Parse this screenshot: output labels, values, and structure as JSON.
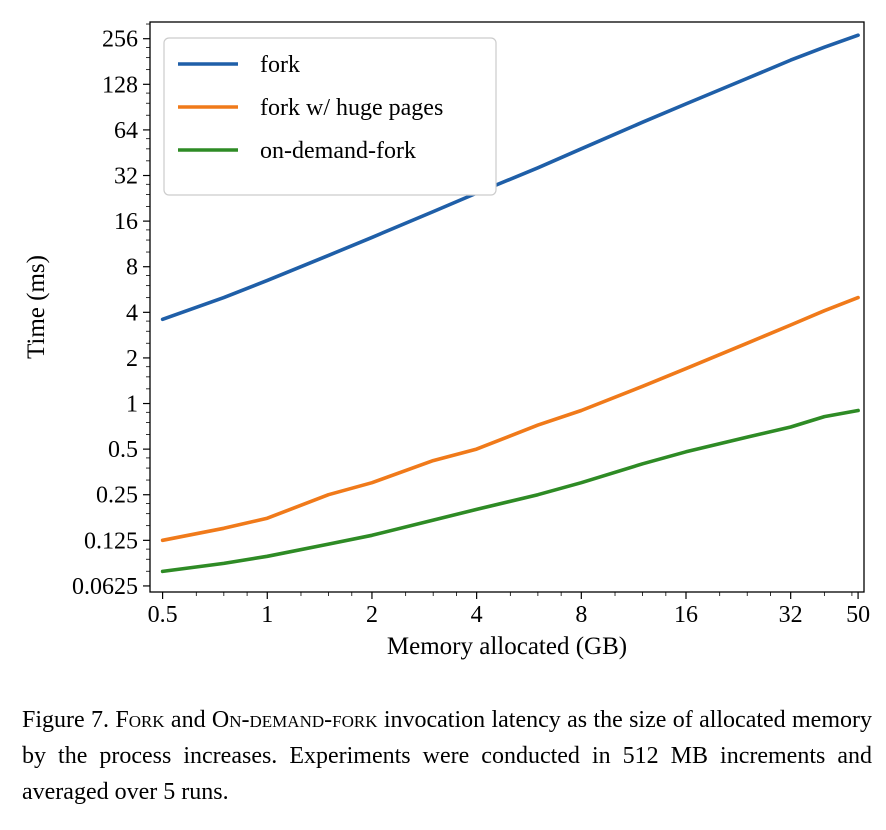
{
  "chart_data": {
    "type": "line",
    "xlabel": "Memory allocated (GB)",
    "ylabel": "Time (ms)",
    "x_scale": "log2",
    "y_scale": "log2",
    "xlim": [
      0.46,
      52
    ],
    "ylim": [
      0.057,
      330
    ],
    "x_ticks": [
      0.5,
      1,
      2,
      4,
      8,
      16,
      32,
      50
    ],
    "x_tick_labels": [
      "0.5",
      "1",
      "2",
      "4",
      "8",
      "16",
      "32",
      "50"
    ],
    "y_ticks": [
      0.0625,
      0.125,
      0.25,
      0.5,
      1,
      2,
      4,
      8,
      16,
      32,
      64,
      128,
      256
    ],
    "y_tick_labels": [
      "0.0625",
      "0.125",
      "0.25",
      "0.5",
      "1",
      "2",
      "4",
      "8",
      "16",
      "32",
      "64",
      "128",
      "256"
    ],
    "grid": false,
    "legend_position": "top-left",
    "x": [
      0.5,
      0.75,
      1,
      1.5,
      2,
      3,
      4,
      6,
      8,
      12,
      16,
      24,
      32,
      40,
      50
    ],
    "series": [
      {
        "name": "fork",
        "color": "#1f5fa8",
        "values": [
          3.6,
          5.0,
          6.5,
          9.5,
          12.5,
          18.5,
          24.5,
          36,
          48,
          72,
          95,
          140,
          185,
          225,
          270
        ]
      },
      {
        "name": "fork w/ huge pages",
        "color": "#f07a1a",
        "values": [
          0.125,
          0.15,
          0.175,
          0.25,
          0.3,
          0.42,
          0.5,
          0.72,
          0.9,
          1.3,
          1.7,
          2.5,
          3.3,
          4.1,
          5.0
        ]
      },
      {
        "name": "on-demand-fork",
        "color": "#2e8b25",
        "values": [
          0.078,
          0.088,
          0.098,
          0.118,
          0.135,
          0.17,
          0.2,
          0.25,
          0.3,
          0.4,
          0.48,
          0.6,
          0.7,
          0.82,
          0.9
        ]
      }
    ]
  },
  "caption": {
    "prefix": "Figure 7. ",
    "term1": "Fork",
    "mid1": " and ",
    "term2": "On-demand-fork",
    "rest": " invocation latency as the size of allocated memory by the process increases. Experiments were conducted in 512 MB increments and averaged over 5 runs."
  }
}
